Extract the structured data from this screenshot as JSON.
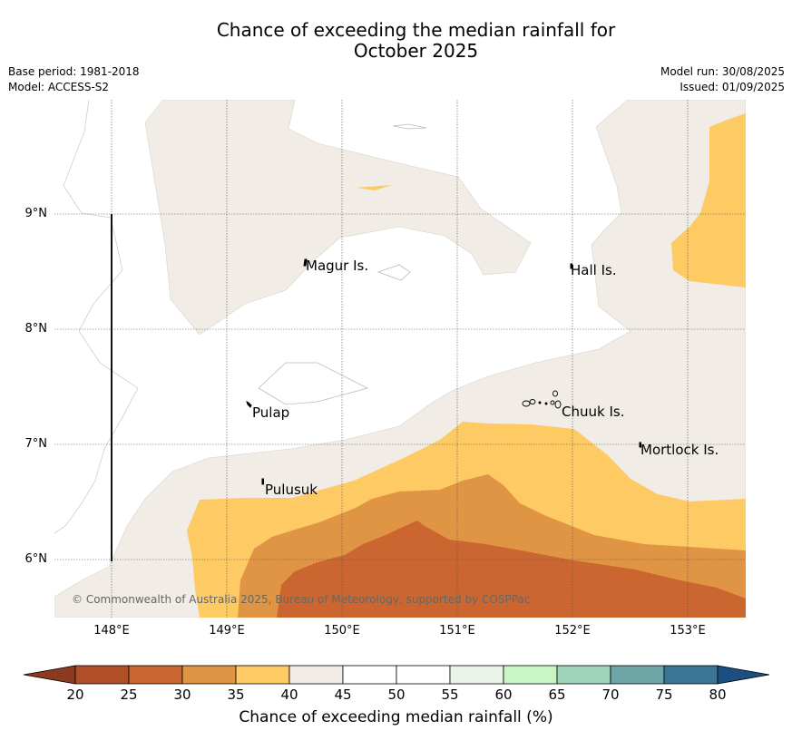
{
  "title_line1": "Chance of exceeding the median rainfall for",
  "title_line2": "October 2025",
  "base_period": "Base period: 1981-2018",
  "model": "Model: ACCESS-S2",
  "model_run": "Model run: 30/08/2025",
  "issued": "Issued: 01/09/2025",
  "copyright": "© Commonwealth of Australia 2025, Bureau of Meteorology, supported by COSPPac",
  "x_ticks": [
    "148°E",
    "149°E",
    "150°E",
    "151°E",
    "152°E",
    "153°E"
  ],
  "y_ticks": [
    "9°N",
    "8°N",
    "7°N",
    "6°N"
  ],
  "places": {
    "magur": "Magur Is.",
    "hall": "Hall Is.",
    "pulap": "Pulap",
    "chuuk": "Chuuk Is.",
    "mortlock": "Mortlock Is.",
    "pulusuk": "Pulusuk"
  },
  "colorbar": {
    "ticks": [
      "20",
      "25",
      "30",
      "35",
      "40",
      "45",
      "50",
      "55",
      "60",
      "65",
      "70",
      "75",
      "80"
    ],
    "colors": [
      "#b04e28",
      "#cc6630",
      "#e09545",
      "#fdca64",
      "#f1ece6",
      "#ffffff",
      "#ffffff",
      "#eaf4e9",
      "#caf6c5",
      "#9ed4b9",
      "#6ea5a6",
      "#3b7595"
    ],
    "under_color": "#8c3a1f",
    "over_color": "#1a4f80",
    "label": "Chance of exceeding median rainfall (%)"
  }
}
